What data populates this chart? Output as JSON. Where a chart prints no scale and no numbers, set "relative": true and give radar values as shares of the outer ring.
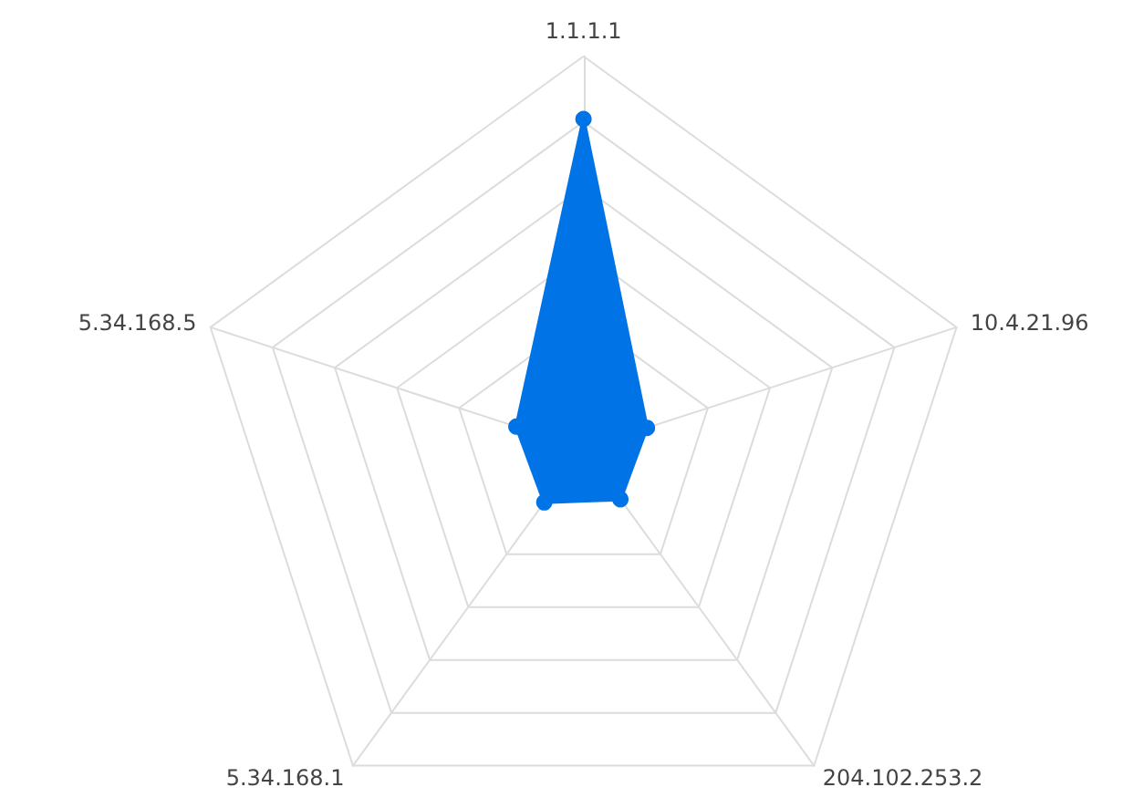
{
  "chart_data": {
    "type": "radar",
    "relative": true,
    "categories": [
      "1.1.1.1",
      "10.4.21.96",
      "204.102.253.2",
      "5.34.168.1",
      "5.34.168.5"
    ],
    "series": [
      {
        "color": "#0073e6",
        "values": [
          0.84,
          0.17,
          0.16,
          0.17,
          0.18
        ]
      }
    ],
    "marker": "circle"
  }
}
